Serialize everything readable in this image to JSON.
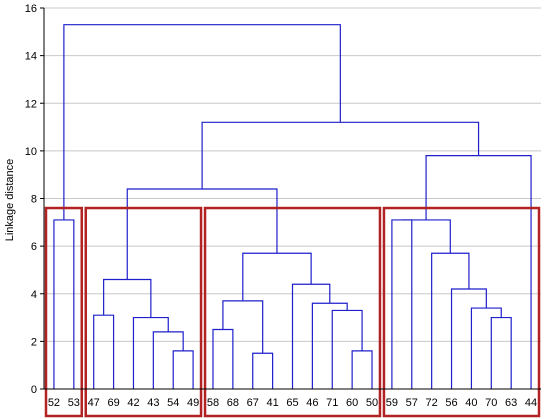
{
  "chart_data": {
    "type": "dendrogram",
    "ylabel": "Linkage distance",
    "ylim": [
      0,
      16
    ],
    "yticks": [
      0,
      2,
      4,
      6,
      8,
      10,
      12,
      14,
      16
    ],
    "grid": true,
    "leaves": [
      "52",
      "53",
      "47",
      "69",
      "42",
      "43",
      "54",
      "49",
      "58",
      "68",
      "67",
      "41",
      "65",
      "46",
      "71",
      "60",
      "50",
      "59",
      "57",
      "72",
      "56",
      "40",
      "70",
      "63",
      "44"
    ],
    "merges": [
      {
        "id": "m1",
        "a": "L:52",
        "b": "L:53",
        "height": 7.1
      },
      {
        "id": "m2",
        "a": "L:54",
        "b": "L:49",
        "height": 1.6
      },
      {
        "id": "m3",
        "a": "L:43",
        "b": "m2",
        "height": 2.4
      },
      {
        "id": "m4",
        "a": "L:42",
        "b": "m3",
        "height": 3.0
      },
      {
        "id": "m5",
        "a": "L:47",
        "b": "L:69",
        "height": 3.1
      },
      {
        "id": "m6",
        "a": "m5",
        "b": "m4",
        "height": 4.6
      },
      {
        "id": "m7",
        "a": "L:58",
        "b": "L:68",
        "height": 2.5
      },
      {
        "id": "m8",
        "a": "L:67",
        "b": "L:41",
        "height": 1.5
      },
      {
        "id": "m9",
        "a": "m7",
        "b": "m8",
        "height": 3.7
      },
      {
        "id": "m10",
        "a": "L:60",
        "b": "L:50",
        "height": 1.6
      },
      {
        "id": "m11",
        "a": "L:71",
        "b": "m10",
        "height": 3.3
      },
      {
        "id": "m12",
        "a": "L:46",
        "b": "m11",
        "height": 3.6
      },
      {
        "id": "m13",
        "a": "L:65",
        "b": "m12",
        "height": 4.4
      },
      {
        "id": "m14",
        "a": "m9",
        "b": "m13",
        "height": 5.7
      },
      {
        "id": "m15",
        "a": "m6",
        "b": "m14",
        "height": 8.4
      },
      {
        "id": "m16",
        "a": "L:59",
        "b": "L:57",
        "height": 7.1
      },
      {
        "id": "m17",
        "a": "L:70",
        "b": "L:63",
        "height": 3.0
      },
      {
        "id": "m18",
        "a": "L:40",
        "b": "m17",
        "height": 3.4
      },
      {
        "id": "m19",
        "a": "L:56",
        "b": "m18",
        "height": 4.2
      },
      {
        "id": "m20",
        "a": "L:72",
        "b": "m19",
        "height": 5.7
      },
      {
        "id": "m21",
        "a": "m16",
        "b": "m20",
        "height": 7.1
      },
      {
        "id": "m22",
        "a": "m21",
        "b": "L:44",
        "height": 9.8
      },
      {
        "id": "m23",
        "a": "m15",
        "b": "m22",
        "height": 11.2
      },
      {
        "id": "m24",
        "a": "m1",
        "b": "m23",
        "height": 15.3
      }
    ],
    "clusters": [
      {
        "first": "52",
        "last": "53",
        "top": 7.6
      },
      {
        "first": "47",
        "last": "49",
        "top": 7.6
      },
      {
        "first": "58",
        "last": "50",
        "top": 7.6
      },
      {
        "first": "59",
        "last": "44",
        "top": 7.6
      }
    ],
    "colors": {
      "line": "#1f1fcc",
      "box": "#b22222",
      "grid": "#c8c8c8",
      "axis": "#000000"
    }
  }
}
